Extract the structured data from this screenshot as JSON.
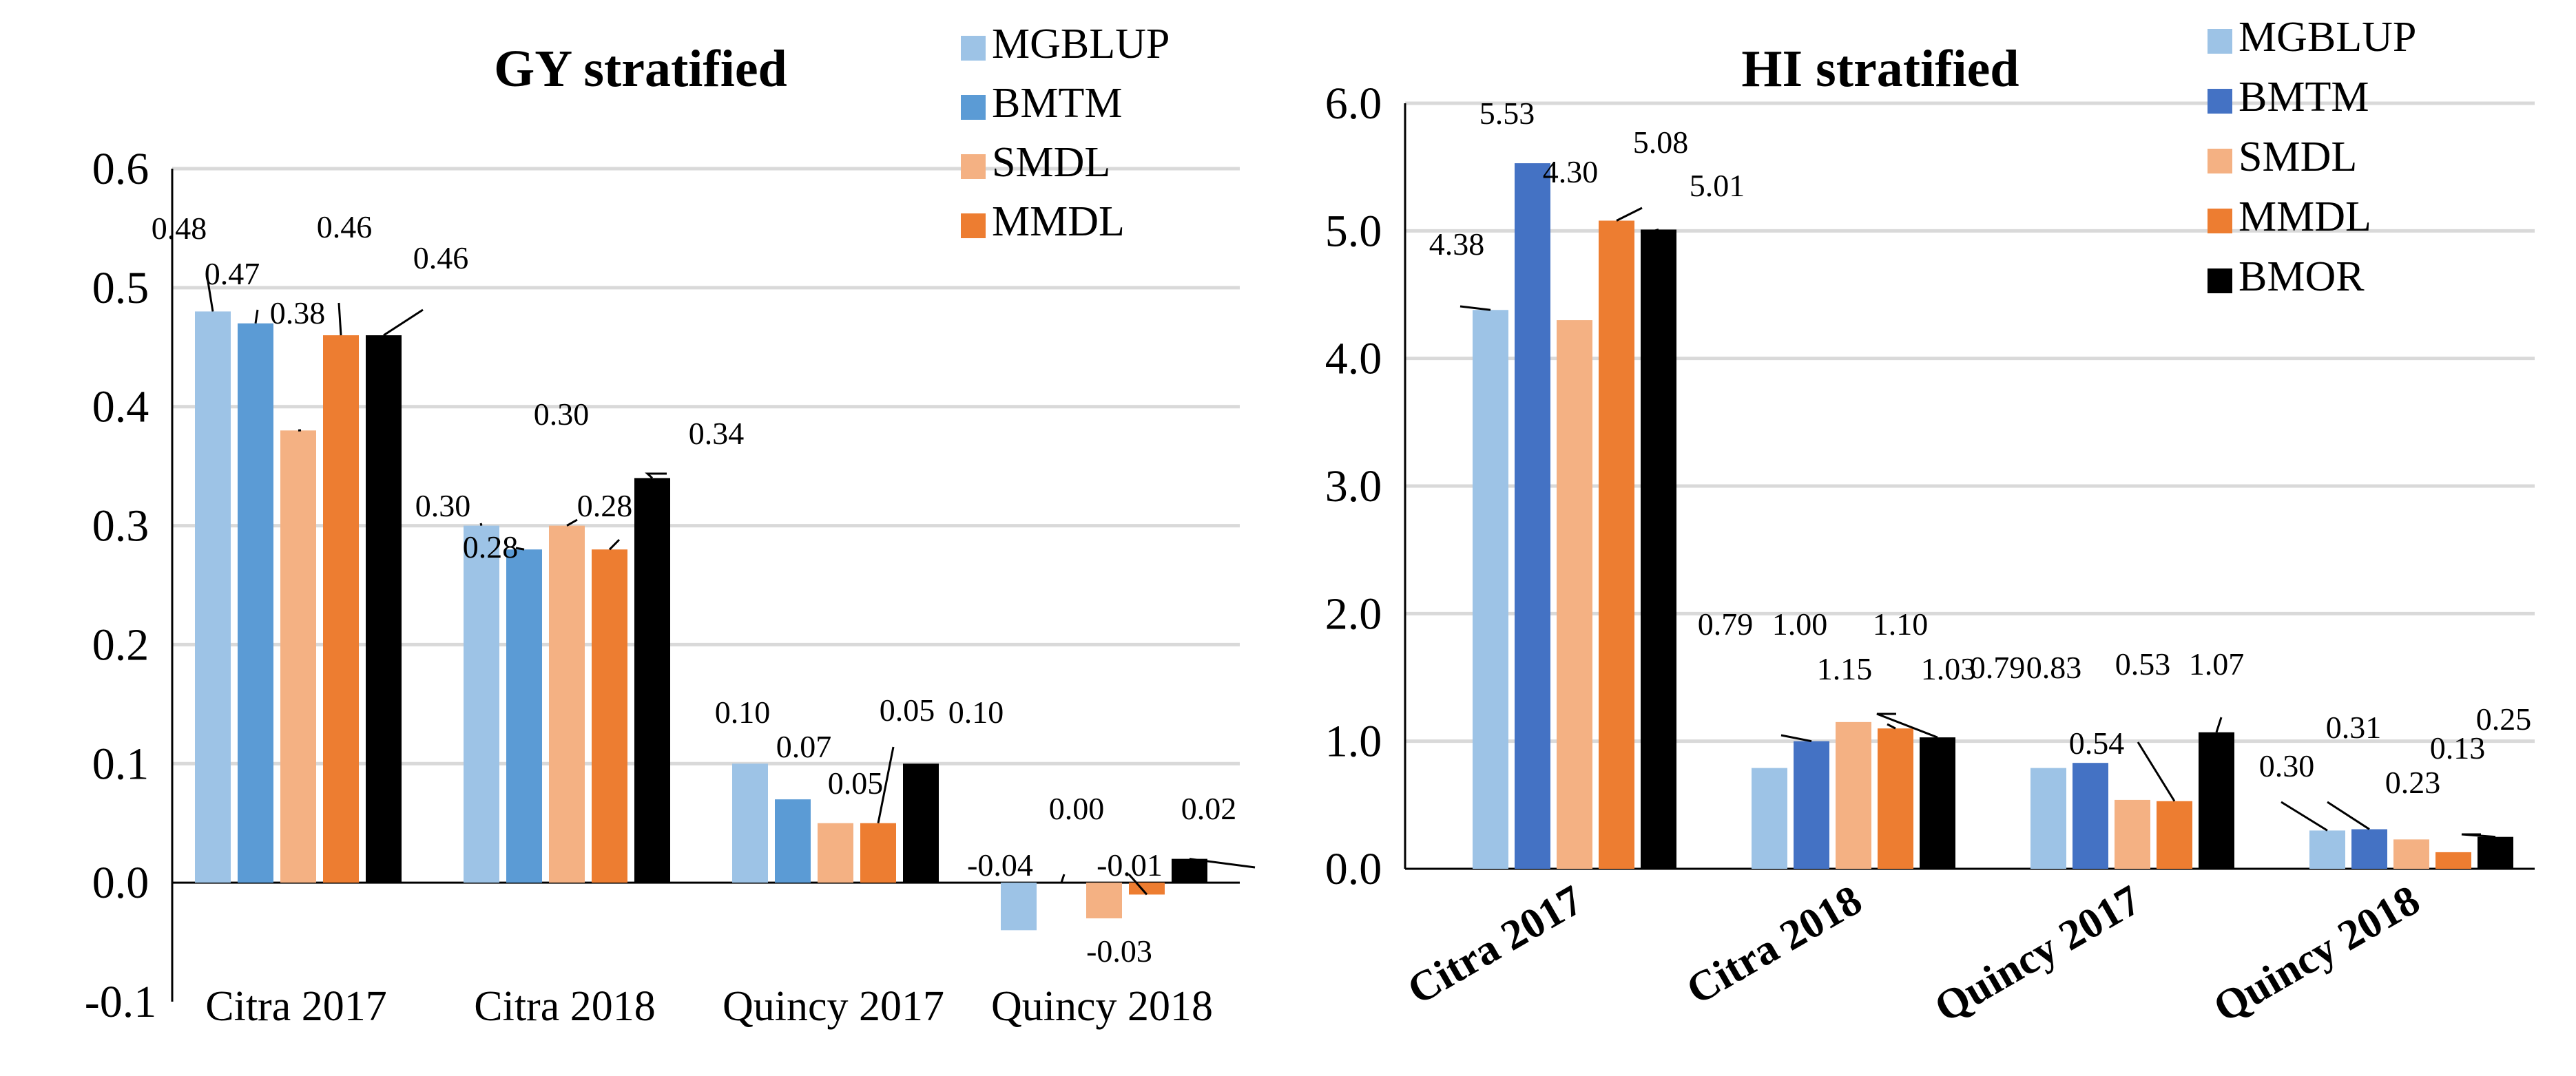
{
  "colors": {
    "MGBLUP": "#9DC3E6",
    "BMTM_left": "#5B9BD5",
    "BMTM_right": "#4472C4",
    "SMDL": "#F4B183",
    "MMDL": "#ED7D31",
    "BMOR": "#000000",
    "grid": "#D9D9D9"
  },
  "chart_data": [
    {
      "type": "bar",
      "title": "GY stratified",
      "categories": [
        "Citra 2017",
        "Citra 2018",
        "Quincy 2017",
        "Quincy 2018"
      ],
      "ylim": [
        -0.1,
        0.6
      ],
      "yticks": [
        "-0.1",
        "0.0",
        "0.1",
        "0.2",
        "0.3",
        "0.4",
        "0.5",
        "0.6"
      ],
      "grid": true,
      "legend": "top-right",
      "legend_entries": [
        "MGBLUP",
        "BMTM",
        "SMDL",
        "MMDL"
      ],
      "series": [
        {
          "name": "MGBLUP",
          "values": [
            0.48,
            0.3,
            0.1,
            -0.04
          ],
          "labels": [
            "0.48",
            "0.30",
            "0.10",
            "-0.04"
          ]
        },
        {
          "name": "BMTM",
          "values": [
            0.47,
            0.28,
            0.07,
            0.0
          ],
          "labels": [
            "0.47",
            "0.28",
            "0.07",
            "0.00"
          ]
        },
        {
          "name": "SMDL",
          "values": [
            0.38,
            0.3,
            0.05,
            -0.03
          ],
          "labels": [
            "0.38",
            "0.30",
            "0.05",
            "-0.03"
          ]
        },
        {
          "name": "MMDL",
          "values": [
            0.46,
            0.28,
            0.05,
            -0.01
          ],
          "labels": [
            "0.46",
            "0.28",
            "0.05",
            "-0.01"
          ]
        },
        {
          "name": "BMOR",
          "values": [
            0.46,
            0.34,
            0.1,
            0.02
          ],
          "labels": [
            "0.46",
            "0.34",
            "0.10",
            "0.02"
          ]
        }
      ]
    },
    {
      "type": "bar",
      "title": "HI stratified",
      "categories": [
        "Citra 2017",
        "Citra 2018",
        "Quincy 2017",
        "Quincy 2018"
      ],
      "ylim": [
        0,
        6
      ],
      "yticks": [
        "0.0",
        "1.0",
        "2.0",
        "3.0",
        "4.0",
        "5.0",
        "6.0"
      ],
      "grid": true,
      "legend": "top-right",
      "legend_entries": [
        "MGBLUP",
        "BMTM",
        "SMDL",
        "MMDL",
        "BMOR"
      ],
      "series": [
        {
          "name": "MGBLUP",
          "values": [
            4.38,
            0.79,
            0.79,
            0.3
          ],
          "labels": [
            "4.38",
            "0.79",
            "0.79",
            "0.30"
          ]
        },
        {
          "name": "BMTM",
          "values": [
            5.53,
            1.0,
            0.83,
            0.31
          ],
          "labels": [
            "5.53",
            "1.00",
            "0.83",
            "0.31"
          ]
        },
        {
          "name": "SMDL",
          "values": [
            4.3,
            1.15,
            0.54,
            0.23
          ],
          "labels": [
            "4.30",
            "1.15",
            "0.54",
            "0.23"
          ]
        },
        {
          "name": "MMDL",
          "values": [
            5.08,
            1.1,
            0.53,
            0.13
          ],
          "labels": [
            "5.08",
            "1.10",
            "0.53",
            "0.13"
          ]
        },
        {
          "name": "BMOR",
          "values": [
            5.01,
            1.03,
            1.07,
            0.25
          ],
          "labels": [
            "5.01",
            "1.03",
            "1.07",
            "0.25"
          ]
        }
      ]
    }
  ]
}
